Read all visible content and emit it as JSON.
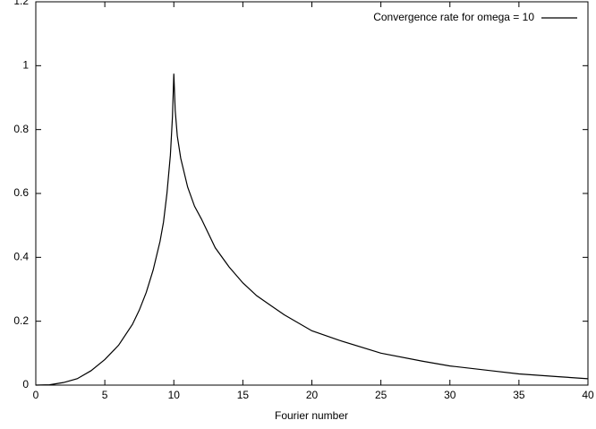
{
  "chart_data": {
    "type": "line",
    "x_label": "Fourier number",
    "x": [
      0,
      1,
      2,
      3,
      4,
      5,
      6,
      7,
      7.5,
      8,
      8.5,
      9,
      9.25,
      9.5,
      9.75,
      9.9,
      10,
      10.1,
      10.25,
      10.5,
      11,
      11.5,
      12,
      13,
      14,
      15,
      16,
      17,
      18,
      20,
      22,
      25,
      28,
      30,
      33,
      35,
      38,
      40
    ],
    "series": [
      {
        "name": "Convergence rate for omega = 10",
        "color": "#000000",
        "values": [
          0,
          0.001,
          0.008,
          0.02,
          0.045,
          0.08,
          0.125,
          0.19,
          0.235,
          0.29,
          0.36,
          0.45,
          0.51,
          0.6,
          0.72,
          0.84,
          0.975,
          0.86,
          0.78,
          0.71,
          0.62,
          0.56,
          0.52,
          0.43,
          0.37,
          0.32,
          0.28,
          0.25,
          0.22,
          0.17,
          0.14,
          0.1,
          0.075,
          0.06,
          0.045,
          0.035,
          0.026,
          0.02
        ]
      }
    ],
    "xlim": [
      0,
      40
    ],
    "xticks": [
      0,
      5,
      10,
      15,
      20,
      25,
      30,
      35,
      40
    ],
    "ylim": [
      0,
      1.2
    ],
    "yticks": [
      0,
      0.2,
      0.4,
      0.6,
      0.8,
      1,
      1.2
    ],
    "grid": false,
    "legend": "top-right"
  }
}
